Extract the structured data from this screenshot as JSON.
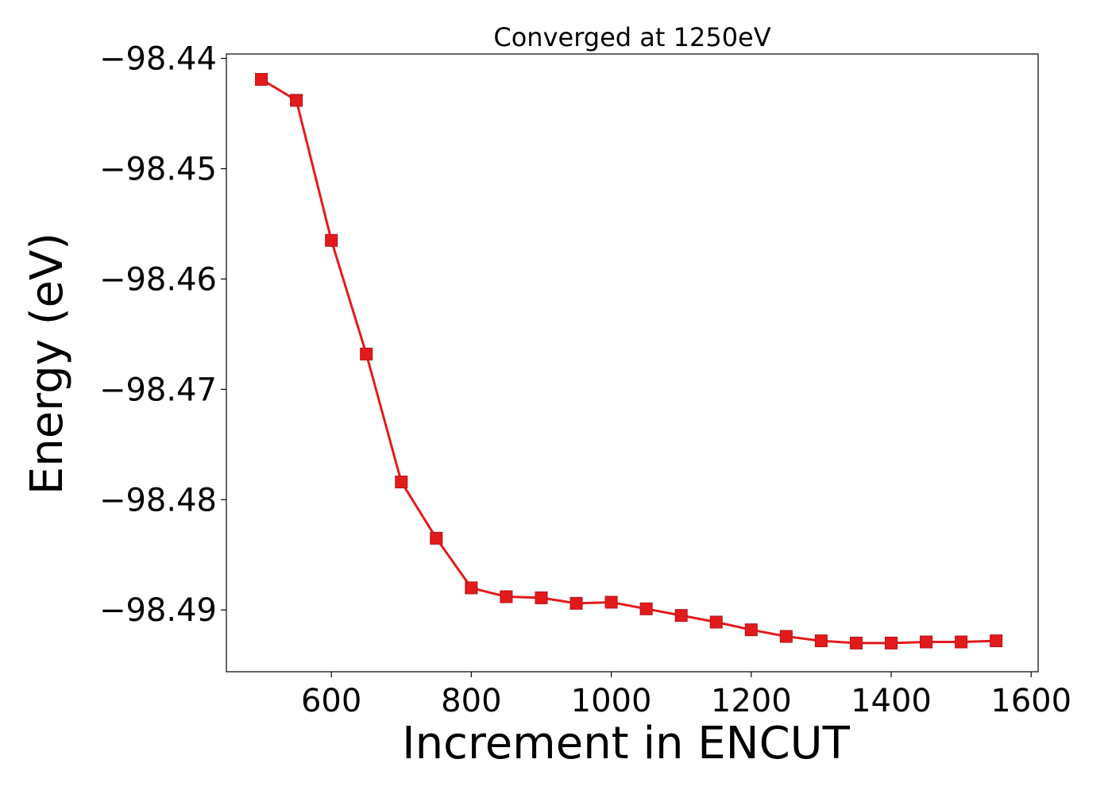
{
  "chart_data": {
    "type": "line",
    "title": "Converged at 1250eV",
    "xlabel": "Increment in ENCUT",
    "ylabel": "Energy (eV)",
    "xlim": [
      450,
      1610
    ],
    "ylim": [
      -98.4956,
      -98.4396
    ],
    "xticks": [
      600,
      800,
      1000,
      1200,
      1400,
      1600
    ],
    "xtick_labels": [
      "600",
      "800",
      "1000",
      "1200",
      "1400",
      "1600"
    ],
    "yticks": [
      -98.44,
      -98.45,
      -98.46,
      -98.47,
      -98.48,
      -98.49
    ],
    "ytick_labels": [
      "−98.44",
      "−98.45",
      "−98.46",
      "−98.47",
      "−98.48",
      "−98.49"
    ],
    "grid": false,
    "series": [
      {
        "color": "#e31a1c",
        "marker": "square",
        "x": [
          500,
          550,
          600,
          650,
          700,
          750,
          800,
          850,
          900,
          950,
          1000,
          1050,
          1100,
          1150,
          1200,
          1250,
          1300,
          1350,
          1400,
          1450,
          1500,
          1550
        ],
        "y": [
          -98.4419,
          -98.4438,
          -98.4565,
          -98.4668,
          -98.4784,
          -98.4835,
          -98.488,
          -98.4888,
          -98.4889,
          -98.4894,
          -98.4893,
          -98.4899,
          -98.4905,
          -98.4911,
          -98.4918,
          -98.4924,
          -98.4928,
          -98.493,
          -98.493,
          -98.4929,
          -98.4929,
          -98.4928
        ]
      }
    ]
  }
}
